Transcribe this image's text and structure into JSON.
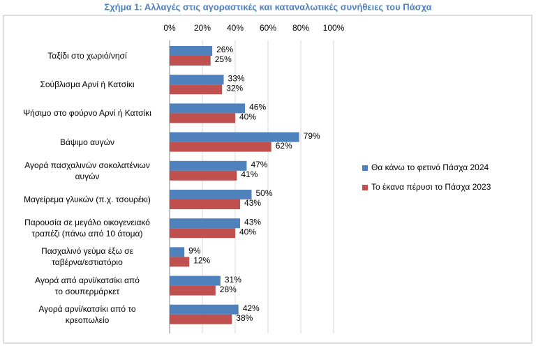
{
  "chart_data": {
    "type": "bar",
    "orientation": "horizontal",
    "title": "Σχήμα 1: Αλλαγές στις αγοραστικές και καταναλωτικές συνήθειες του Πάσχα",
    "categories": [
      "Ταξίδι στο χωριό/νησί",
      "Σούβλισμα Αρνί ή Κατσίκι",
      "Ψήσιμο στο φούρνο Αρνί ή Κατσίκι",
      "Βάψιμο αυγών",
      "Αγορά πασχαλινών σοκολατένιων\nαυγών",
      "Μαγείρεμα γλυκών (π.χ. τσουρέκι)",
      "Παρουσία σε μεγάλο οικογενειακό\nτραπέζι (πάνω από 10 άτομα)",
      "Πασχαλινό γεύμα έξω σε\nταβέρνα/εστιατόριο",
      "Αγορά από αρνί/κατσίκι από\nτο σουπερμάρκετ",
      "Αγορά αρνί/κατσίκι από το\nκρεοπωλείο"
    ],
    "series": [
      {
        "name": "Θα κάνω το φετινό Πάσχα 2024",
        "color": "#4f81bd",
        "values": [
          26,
          33,
          46,
          79,
          47,
          50,
          43,
          9,
          31,
          42
        ],
        "value_labels": [
          "26%",
          "33%",
          "46%",
          "79%",
          "47%",
          "50%",
          "43%",
          "9%",
          "31%",
          "42%"
        ]
      },
      {
        "name": "Το έκανα πέρυσι το Πάσχα 2023",
        "color": "#c0504d",
        "values": [
          25,
          32,
          40,
          62,
          41,
          43,
          40,
          12,
          28,
          38
        ],
        "value_labels": [
          "25%",
          "32%",
          "40%",
          "62%",
          "41%",
          "43%",
          "40%",
          "12%",
          "28%",
          "38%"
        ]
      }
    ],
    "xlim": [
      0,
      100
    ],
    "xticks": [
      {
        "value": 0,
        "label": "0%"
      },
      {
        "value": 20,
        "label": "20%"
      },
      {
        "value": 40,
        "label": "40%"
      },
      {
        "value": 60,
        "label": "60%"
      },
      {
        "value": 80,
        "label": "80%"
      },
      {
        "value": 100,
        "label": "100%"
      }
    ],
    "grid": true,
    "legend": "right"
  }
}
